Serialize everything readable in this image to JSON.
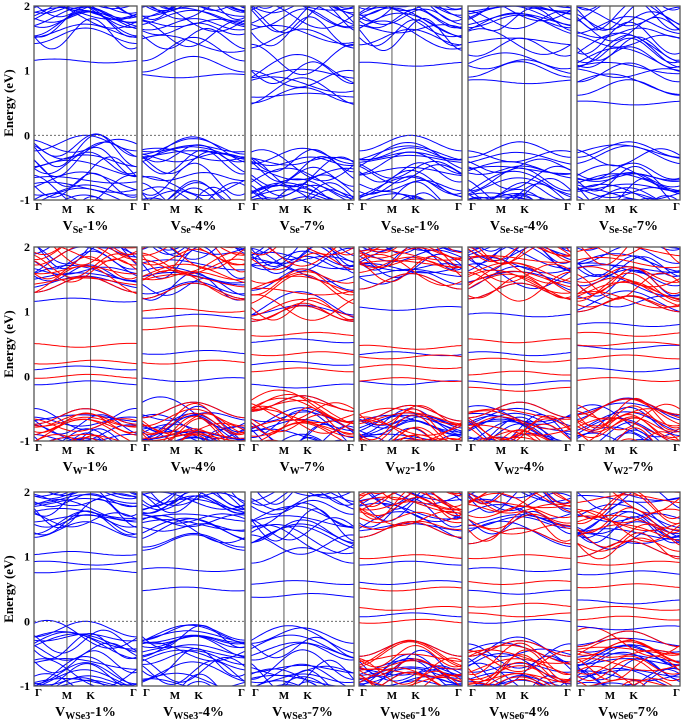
{
  "chart_data": {
    "type": "line",
    "ylabel": "Energy (eV)",
    "ylim": [
      -1,
      2
    ],
    "yticks": [
      "2",
      "1",
      "0",
      "-1"
    ],
    "kpath": [
      "Γ",
      "M",
      "K",
      "Γ"
    ],
    "colors": {
      "spin_up": "#0000ff",
      "spin_down": "#ff0000",
      "fermi": "#555555"
    },
    "panels": [
      {
        "label": {
          "main": "V",
          "sub": "Se",
          "suffix": "-1%"
        },
        "spin_polarized": false,
        "cbm": 1.42,
        "vbm": 0.0,
        "levels_up": [
          1.15
        ],
        "levels_down": []
      },
      {
        "label": {
          "main": "V",
          "sub": "Se",
          "suffix": "-4%"
        },
        "spin_polarized": false,
        "cbm": 0.98,
        "vbm": -0.05,
        "levels_up": [
          0.92
        ],
        "levels_down": []
      },
      {
        "label": {
          "main": "V",
          "sub": "Se",
          "suffix": "-7%"
        },
        "spin_polarized": false,
        "cbm": 0.5,
        "vbm": -0.2,
        "levels_up": [
          0.62
        ],
        "levels_down": []
      },
      {
        "label": {
          "main": "V",
          "sub": "Se-Se",
          "suffix": "-1%"
        },
        "spin_polarized": false,
        "cbm": 1.4,
        "vbm": 0.0,
        "levels_up": [
          1.1
        ],
        "levels_down": []
      },
      {
        "label": {
          "main": "V",
          "sub": "Se-Se",
          "suffix": "-4%"
        },
        "spin_polarized": false,
        "cbm": 0.9,
        "vbm": -0.1,
        "levels_up": [
          0.83
        ],
        "levels_down": []
      },
      {
        "label": {
          "main": "V",
          "sub": "Se-Se",
          "suffix": "-7%"
        },
        "spin_polarized": false,
        "cbm": 0.62,
        "vbm": -0.1,
        "levels_up": [
          0.5
        ],
        "levels_down": []
      },
      {
        "label": {
          "main": "V",
          "sub": "W",
          "suffix": "-1%"
        },
        "spin_polarized": true,
        "cbm": 1.3,
        "vbm": -0.5,
        "levels_up": [
          1.18,
          0.13,
          -0.1
        ],
        "levels_down": [
          0.48,
          0.22,
          0.0
        ]
      },
      {
        "label": {
          "main": "V",
          "sub": "W",
          "suffix": "-4%"
        },
        "spin_polarized": true,
        "cbm": 1.2,
        "vbm": -0.4,
        "levels_up": [
          0.93,
          0.37,
          -0.05
        ],
        "levels_down": [
          0.75,
          0.22,
          1.02
        ]
      },
      {
        "label": {
          "main": "V",
          "sub": "W",
          "suffix": "-7%"
        },
        "spin_polarized": true,
        "cbm": 0.85,
        "vbm": -0.3,
        "levels_up": [
          0.55,
          0.2,
          -0.15
        ],
        "levels_down": [
          0.65,
          0.35,
          0.1
        ]
      },
      {
        "label": {
          "main": "V",
          "sub": "W2",
          "suffix": "-1%"
        },
        "spin_polarized": true,
        "cbm": 1.35,
        "vbm": -0.45,
        "levels_up": [
          1.05,
          0.35,
          -0.1
        ],
        "levels_down": [
          0.45,
          0.3,
          0.15,
          -0.05
        ]
      },
      {
        "label": {
          "main": "V",
          "sub": "W2",
          "suffix": "-4%"
        },
        "spin_polarized": true,
        "cbm": 1.2,
        "vbm": -0.4,
        "levels_up": [
          0.95,
          0.35,
          -0.1
        ],
        "levels_down": [
          0.55,
          0.25,
          0.05,
          -0.2
        ]
      },
      {
        "label": {
          "main": "V",
          "sub": "W2",
          "suffix": "-7%"
        },
        "spin_polarized": true,
        "cbm": 1.0,
        "vbm": -0.35,
        "levels_up": [
          0.8,
          0.45,
          0.1
        ],
        "levels_down": [
          0.65,
          0.5,
          0.3,
          -0.05
        ]
      },
      {
        "label": {
          "main": "V",
          "sub": "WSe3",
          "suffix": "-1%"
        },
        "spin_polarized": false,
        "cbm": 1.3,
        "vbm": 0.0,
        "levels_up": [
          1.05,
          0.9,
          0.78
        ],
        "levels_down": []
      },
      {
        "label": {
          "main": "V",
          "sub": "WSe3",
          "suffix": "-4%"
        },
        "spin_polarized": false,
        "cbm": 1.1,
        "vbm": -0.05,
        "levels_up": [
          0.8,
          0.5
        ],
        "levels_down": []
      },
      {
        "label": {
          "main": "V",
          "sub": "WSe3",
          "suffix": "-7%"
        },
        "spin_polarized": false,
        "cbm": 0.9,
        "vbm": -0.1,
        "levels_up": [
          0.6,
          0.4
        ],
        "levels_down": []
      },
      {
        "label": {
          "main": "V",
          "sub": "WSe6",
          "suffix": "-1%"
        },
        "spin_polarized": true,
        "cbm": 1.3,
        "vbm": -0.3,
        "levels_up": [
          0.9,
          0.6,
          0.1
        ],
        "levels_down": [
          1.0,
          0.5,
          0.2,
          0.0
        ]
      },
      {
        "label": {
          "main": "V",
          "sub": "WSe6",
          "suffix": "-4%"
        },
        "spin_polarized": true,
        "cbm": 1.2,
        "vbm": -0.3,
        "levels_up": [
          0.8,
          0.45,
          0.0
        ],
        "levels_down": [
          1.0,
          0.6,
          0.25,
          0.1
        ]
      },
      {
        "label": {
          "main": "V",
          "sub": "WSe6",
          "suffix": "-7%"
        },
        "spin_polarized": true,
        "cbm": 1.0,
        "vbm": -0.15,
        "levels_up": [
          0.75,
          0.3,
          -0.1
        ],
        "levels_down": [
          0.9,
          0.55,
          0.2,
          0.05
        ]
      }
    ]
  }
}
